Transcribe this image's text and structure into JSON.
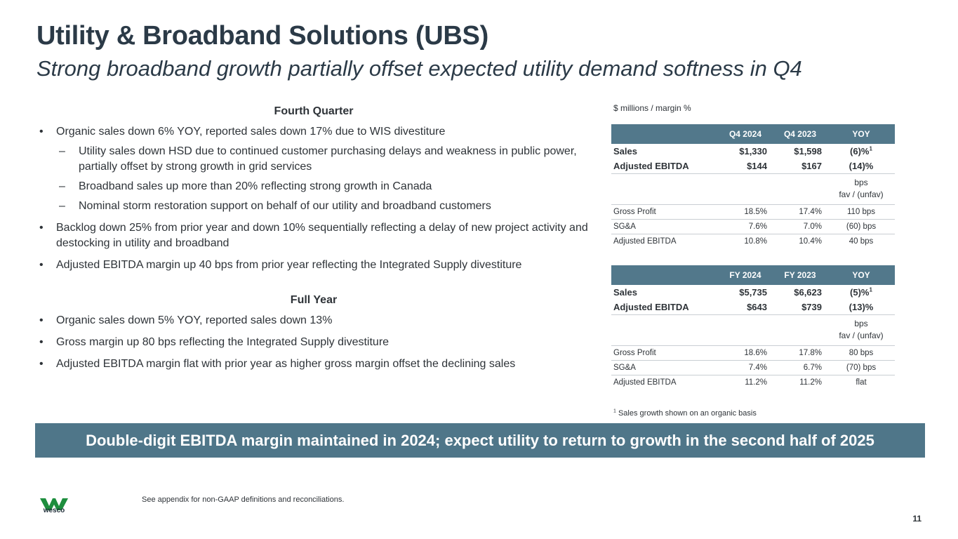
{
  "title": "Utility & Broadband Solutions (UBS)",
  "subtitle": "Strong broadband growth partially offset expected utility demand softness in Q4",
  "fourth_quarter": {
    "heading": "Fourth Quarter",
    "bullet1": "Organic sales down 6% YOY, reported sales down 17% due to WIS divestiture",
    "sub1": "Utility sales down HSD due to continued customer purchasing delays and weakness in public power, partially offset by strong growth in grid services",
    "sub2": "Broadband sales up more than 20% reflecting strong growth in Canada",
    "sub3": "Nominal storm restoration support on behalf of our utility and broadband customers",
    "bullet2": "Backlog down 25% from prior year and down 10% sequentially reflecting a delay of new project activity and destocking in utility and broadband",
    "bullet3": "Adjusted EBITDA margin up 40 bps from prior year reflecting the Integrated Supply divestiture"
  },
  "full_year": {
    "heading": "Full Year",
    "bullet1": "Organic sales down 5% YOY, reported sales down 13%",
    "bullet2": "Gross margin up 80 bps reflecting the Integrated Supply divestiture",
    "bullet3": "Adjusted EBITDA margin flat with prior year as higher gross margin offset the declining sales"
  },
  "units_label": "$ millions / margin %",
  "table_q4": {
    "headers": [
      "Q4 2024",
      "Q4 2023",
      "YOY"
    ],
    "sales": {
      "label": "Sales",
      "cur": "$1,330",
      "prev": "$1,598",
      "yoy": "(6)%",
      "sup": "1"
    },
    "ebitda": {
      "label": "Adjusted EBITDA",
      "cur": "$144",
      "prev": "$167",
      "yoy": "(14)%"
    },
    "bps_line1": "bps",
    "bps_line2": "fav / (unfav)",
    "gross_profit": {
      "label": "Gross Profit",
      "cur": "18.5%",
      "prev": "17.4%",
      "chg": "110 bps"
    },
    "sga": {
      "label": "SG&A",
      "cur": "7.6%",
      "prev": "7.0%",
      "chg": "(60) bps"
    },
    "adj_ebitda": {
      "label": "Adjusted EBITDA",
      "cur": "10.8%",
      "prev": "10.4%",
      "chg": "40 bps"
    }
  },
  "table_fy": {
    "headers": [
      "FY 2024",
      "FY  2023",
      "YOY"
    ],
    "sales": {
      "label": "Sales",
      "cur": "$5,735",
      "prev": "$6,623",
      "yoy": "(5)%",
      "sup": "1"
    },
    "ebitda": {
      "label": "Adjusted EBITDA",
      "cur": "$643",
      "prev": "$739",
      "yoy": "(13)%"
    },
    "bps_line1": "bps",
    "bps_line2": "fav / (unfav)",
    "gross_profit": {
      "label": "Gross Profit",
      "cur": "18.6%",
      "prev": "17.8%",
      "chg": "80 bps"
    },
    "sga": {
      "label": "SG&A",
      "cur": "7.4%",
      "prev": "6.7%",
      "chg": "(70) bps"
    },
    "adj_ebitda": {
      "label": "Adjusted EBITDA",
      "cur": "11.2%",
      "prev": "11.2%",
      "chg": "flat"
    }
  },
  "footnote": {
    "sup": "1",
    "text": "Sales growth shown on an organic basis"
  },
  "banner": "Double-digit EBITDA margin maintained in 2024; expect utility to return to growth in the second half of 2025",
  "logo_text": "wesco",
  "appendix_note": "See appendix for non-GAAP definitions and reconciliations.",
  "page_number": "11",
  "colors": {
    "header_bg": "#52788b",
    "banner_bg": "#4f7689",
    "logo_green": "#1e8e3e",
    "title": "#2b3a47"
  }
}
